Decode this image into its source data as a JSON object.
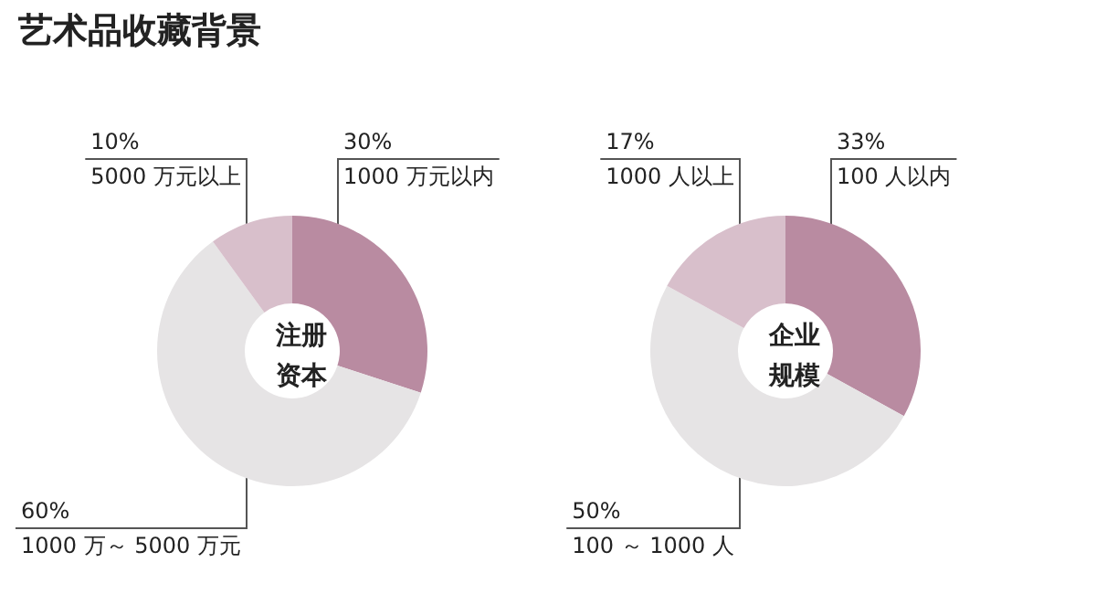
{
  "chart_data": [
    {
      "type": "donut",
      "title": "艺术品收藏背景",
      "annotations": [
        "注册资本"
      ],
      "categories": [
        "1000 万元以内",
        "1000 万～ 5000 万元",
        "5000 万元以上"
      ],
      "values": [
        30,
        60,
        10
      ],
      "value_labels": [
        "30%",
        "60%",
        "10%"
      ],
      "colors": [
        "#b98ba1",
        "#e6e4e5",
        "#d8bfcb"
      ],
      "legend": false
    },
    {
      "type": "donut",
      "annotations": [
        "企业规模"
      ],
      "categories": [
        "100 人以内",
        "100 ～ 1000 人",
        "1000 人以上"
      ],
      "values": [
        33,
        50,
        17
      ],
      "value_labels": [
        "33%",
        "50%",
        "17%"
      ],
      "colors": [
        "#b98ba1",
        "#e6e4e5",
        "#d8bfcb"
      ],
      "legend": false
    }
  ]
}
